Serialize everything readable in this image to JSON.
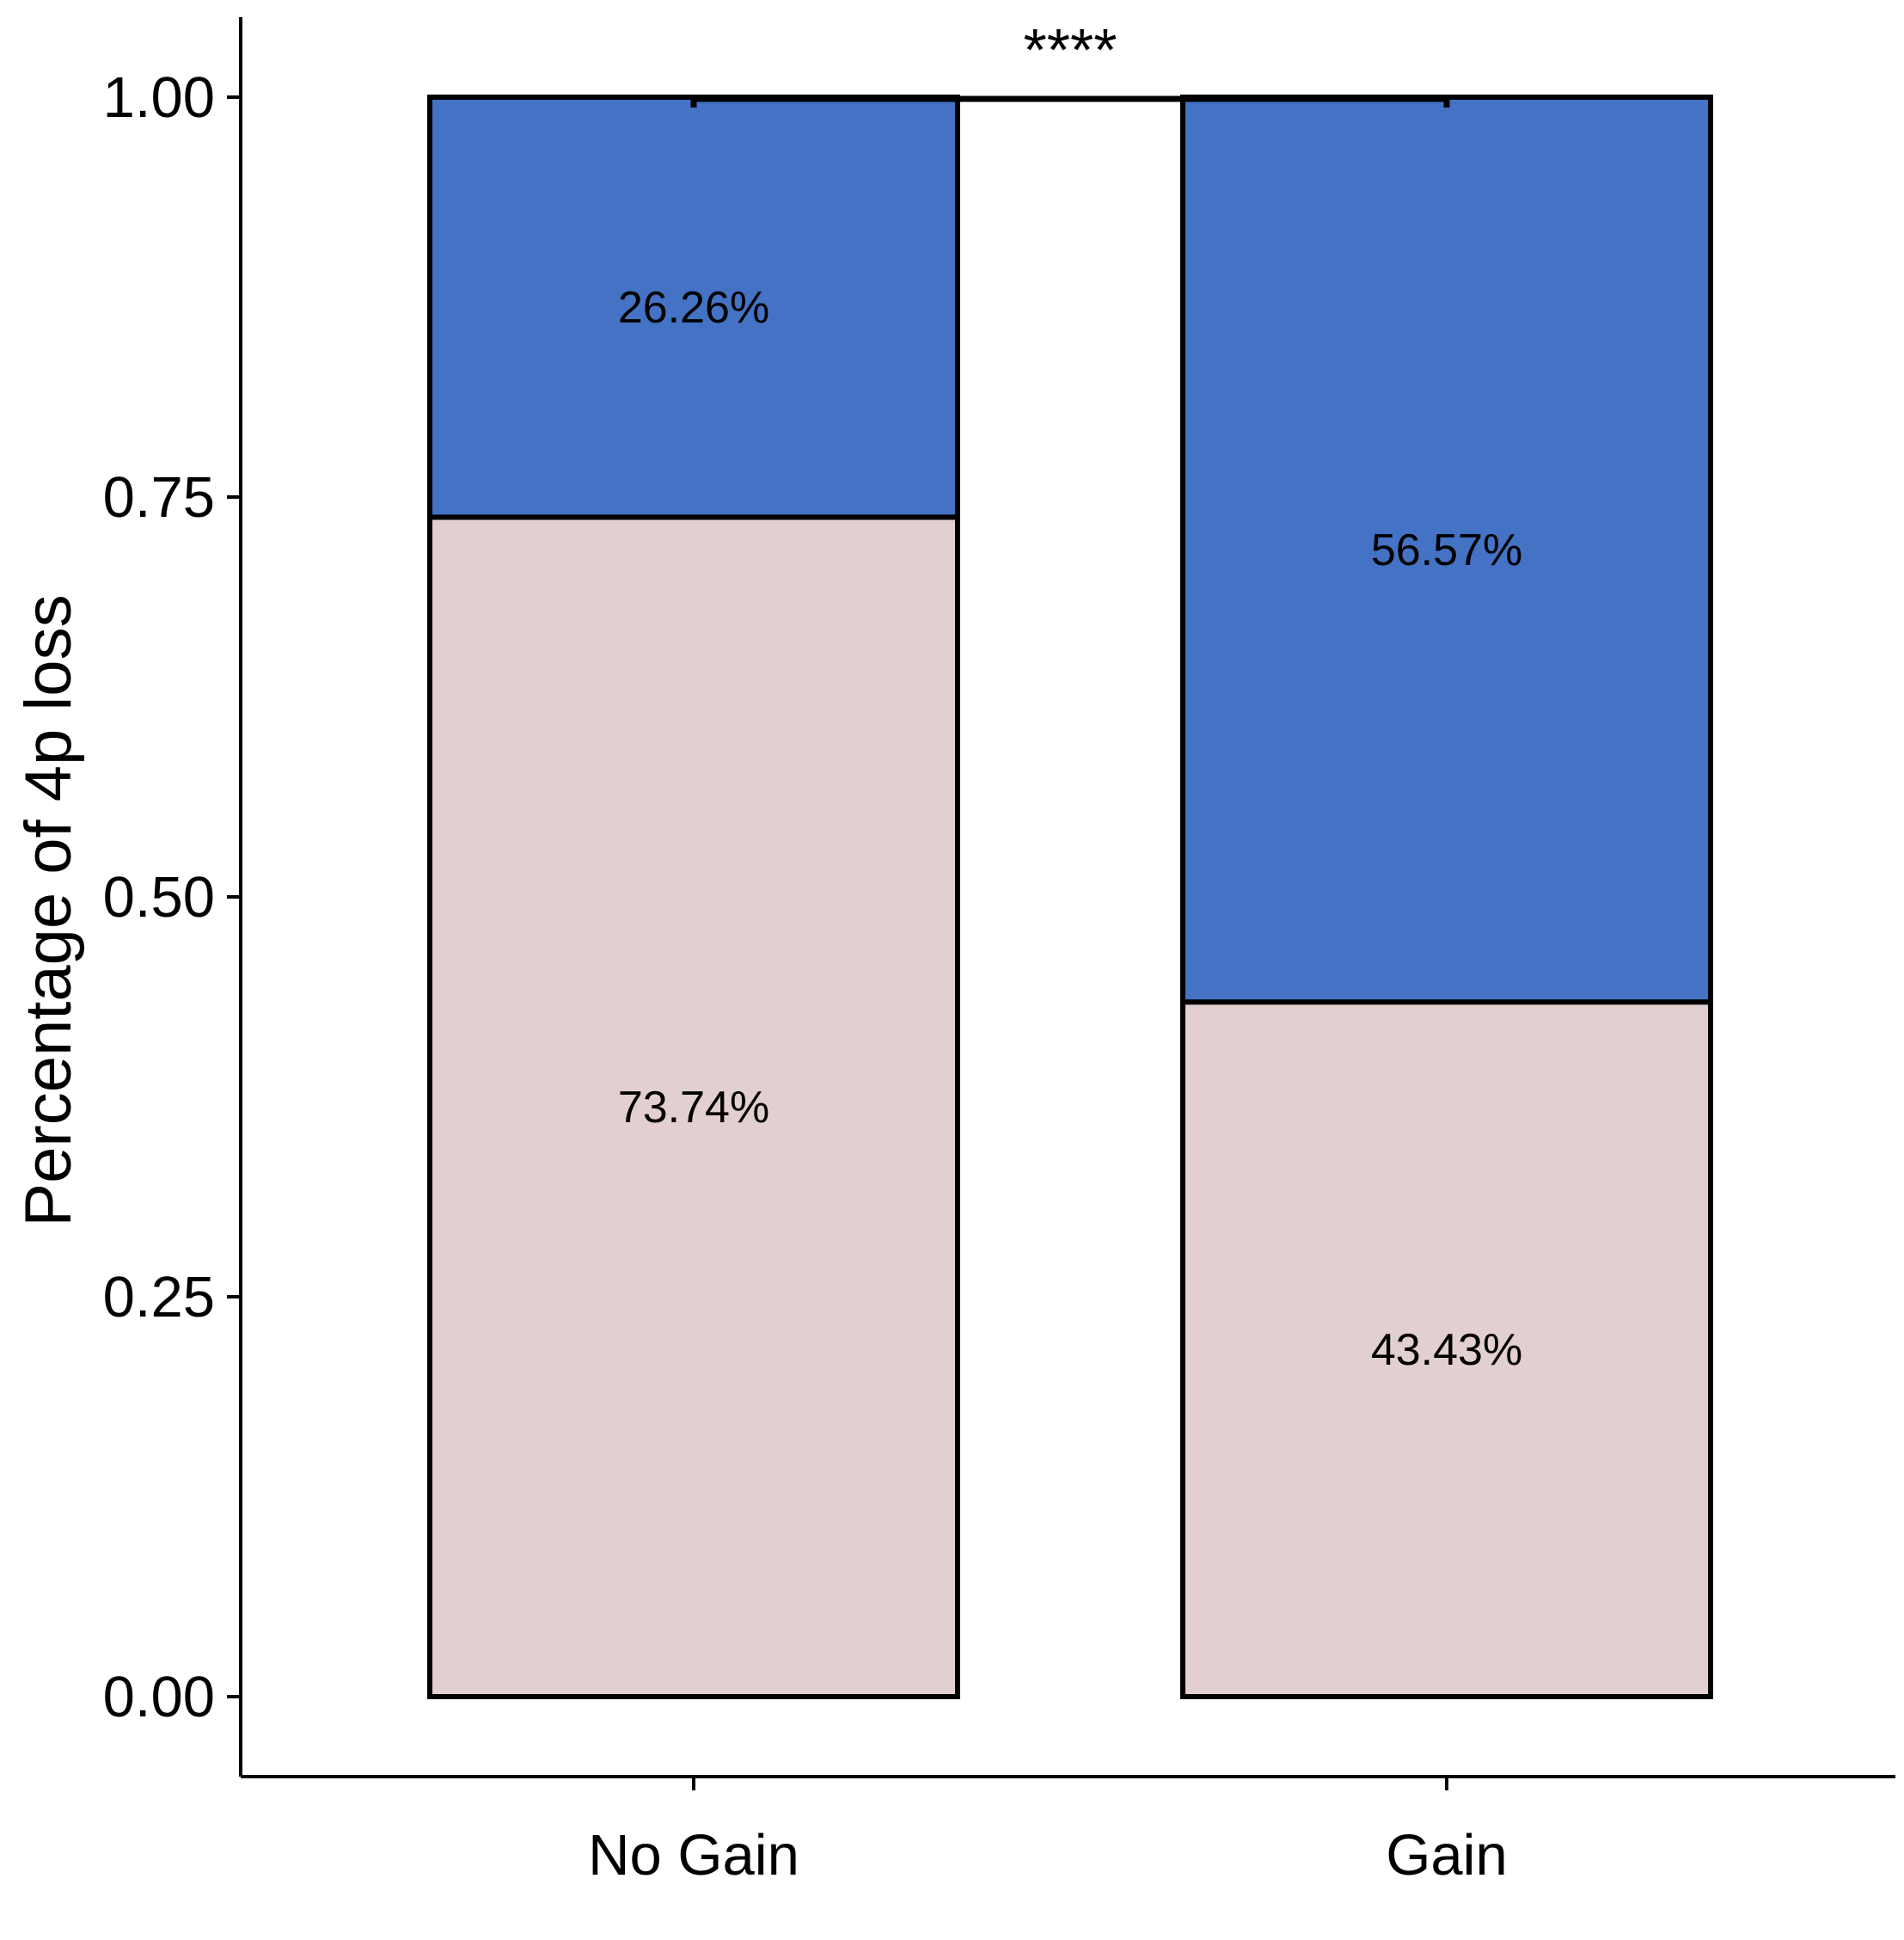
{
  "chart_data": {
    "type": "bar",
    "stacked": true,
    "categories": [
      "No Gain",
      "Gain"
    ],
    "series": [
      {
        "values": [
          0.7374,
          0.4343
        ],
        "labels": [
          "73.74%",
          "43.43%"
        ],
        "color": "#E2CFD0"
      },
      {
        "values": [
          0.2626,
          0.5657
        ],
        "labels": [
          "26.26%",
          "56.57%"
        ],
        "color": "#4472C4"
      }
    ],
    "xlabel": "",
    "ylabel": "Percentage of 4p loss",
    "ylim": [
      -0.05,
      1.05
    ],
    "yticks": [
      0,
      0.25,
      0.5,
      0.75,
      1
    ],
    "ytick_labels": [
      "0.00",
      "0.25",
      "0.50",
      "0.75",
      "1.00"
    ],
    "grid": false,
    "legend": "none",
    "significance": {
      "between": [
        "No Gain",
        "Gain"
      ],
      "label": "****"
    }
  }
}
